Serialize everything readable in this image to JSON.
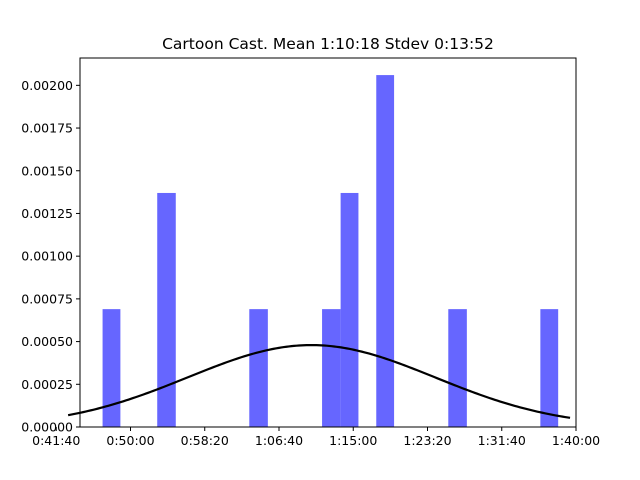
{
  "chart_data": {
    "type": "bar",
    "title": "Cartoon Cast. Mean 1:10:18 Stdev 0:13:52",
    "xlabel": "",
    "ylabel": "",
    "x_unit": "seconds",
    "xlim": [
      2600,
      6000
    ],
    "ylim": [
      0,
      0.00216
    ],
    "x_ticks": [
      {
        "value": 2500,
        "label": "0:41:40"
      },
      {
        "value": 3000,
        "label": "0:50:00"
      },
      {
        "value": 3500,
        "label": "0:58:20"
      },
      {
        "value": 4000,
        "label": "1:06:40"
      },
      {
        "value": 4500,
        "label": "1:15:00"
      },
      {
        "value": 5000,
        "label": "1:23:20"
      },
      {
        "value": 5500,
        "label": "1:31:40"
      },
      {
        "value": 6000,
        "label": "1:40:00"
      }
    ],
    "y_ticks": [
      {
        "value": 0,
        "label": "0.00000"
      },
      {
        "value": 0.00025,
        "label": "0.00025"
      },
      {
        "value": 0.0005,
        "label": "0.00050"
      },
      {
        "value": 0.00075,
        "label": "0.00075"
      },
      {
        "value": 0.001,
        "label": "0.00100"
      },
      {
        "value": 0.00125,
        "label": "0.00125"
      },
      {
        "value": 0.0015,
        "label": "0.00150"
      },
      {
        "value": 0.00175,
        "label": "0.00175"
      },
      {
        "value": 0.002,
        "label": "0.00200"
      }
    ],
    "histogram": {
      "color": "#6666ff",
      "bins": [
        {
          "x_start": 2812,
          "x_end": 2932,
          "density": 0.00069
        },
        {
          "x_start": 3180,
          "x_end": 3305,
          "density": 0.00137
        },
        {
          "x_start": 3800,
          "x_end": 3925,
          "density": 0.00069
        },
        {
          "x_start": 4290,
          "x_end": 4415,
          "density": 0.00069
        },
        {
          "x_start": 4415,
          "x_end": 4535,
          "density": 0.00137
        },
        {
          "x_start": 4655,
          "x_end": 4775,
          "density": 0.00206
        },
        {
          "x_start": 5140,
          "x_end": 5265,
          "density": 0.00069
        },
        {
          "x_start": 5760,
          "x_end": 5880,
          "density": 0.00069
        }
      ]
    },
    "normal_curve": {
      "color": "#000000",
      "mean": 4218,
      "stdev": 832,
      "x_min": 2580,
      "x_max": 5960
    }
  }
}
